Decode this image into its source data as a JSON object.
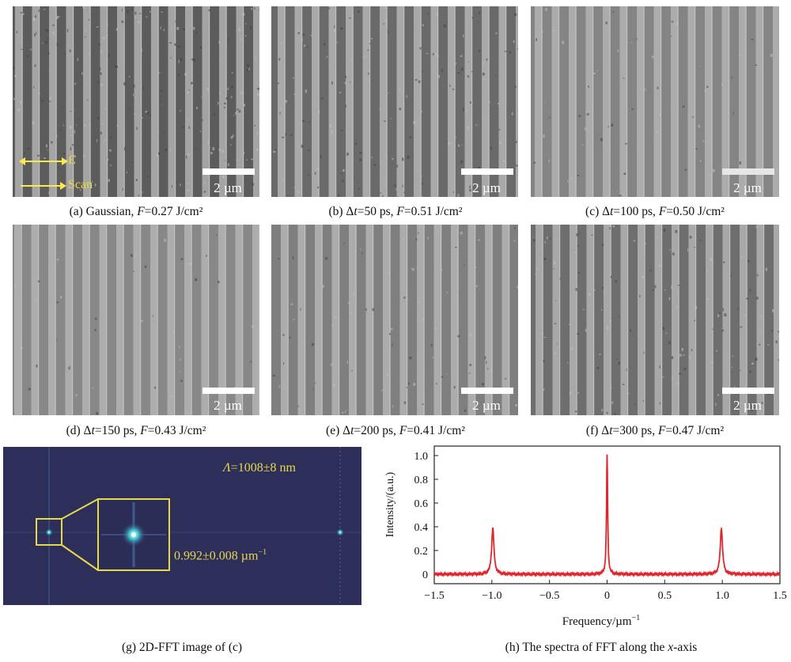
{
  "panels": {
    "a": {
      "caption_pre": "(a) Gaussian, ",
      "f_italic": "F",
      "caption_post": "=0.27 J/cm²",
      "scale_label": "2 µm",
      "legend": {
        "e_label": "E",
        "scan_label": "Scan"
      }
    },
    "b": {
      "caption_pre": "(b) Δ",
      "t_italic": "t",
      "caption_mid": "=50 ps, ",
      "f_italic": "F",
      "caption_post": "=0.51 J/cm²",
      "scale_label": "2 µm"
    },
    "c": {
      "caption_pre": "(c) Δ",
      "t_italic": "t",
      "caption_mid": "=100 ps, ",
      "f_italic": "F",
      "caption_post": "=0.50 J/cm²",
      "scale_label": "2 µm"
    },
    "d": {
      "caption_pre": "(d) Δ",
      "t_italic": "t",
      "caption_mid": "=150 ps, ",
      "f_italic": "F",
      "caption_post": "=0.43 J/cm²",
      "scale_label": "2 µm"
    },
    "e": {
      "caption_pre": "(e) Δ",
      "t_italic": "t",
      "caption_mid": "=200 ps, ",
      "f_italic": "F",
      "caption_post": "=0.41 J/cm²",
      "scale_label": "2 µm"
    },
    "f": {
      "caption_pre": "(f) Δ",
      "t_italic": "t",
      "caption_mid": "=300 ps, ",
      "f_italic": "F",
      "caption_post": "=0.47 J/cm²",
      "scale_label": "2 µm"
    }
  },
  "fft_image": {
    "caption": "(g) 2D-FFT image of (c)",
    "lambda_symbol": "Λ",
    "period_value": "=1008±8 nm",
    "frequency_label": "0.992±0.008 µm",
    "frequency_exponent": "−1"
  },
  "chart_data": {
    "type": "line",
    "title": "",
    "caption_pre": "(h) The spectra of FFT along the ",
    "caption_italic": "x",
    "caption_post": "-axis",
    "xlabel": "Frequency/µm",
    "xlabel_exponent": "−1",
    "ylabel": "Intensity/(a.u.)",
    "xlim": [
      -1.5,
      1.5
    ],
    "ylim": [
      -0.08,
      1.08
    ],
    "x_ticks": [
      -1.5,
      -1.0,
      -0.5,
      0,
      0.5,
      1.0,
      1.5
    ],
    "x_tick_labels": [
      "−1.5",
      "−1.0",
      "−0.5",
      "0",
      "0.5",
      "1.0",
      "1.5"
    ],
    "y_ticks": [
      0,
      0.2,
      0.4,
      0.6,
      0.8,
      1.0
    ],
    "y_tick_labels": [
      "0",
      "0.2",
      "0.4",
      "0.6",
      "0.8",
      "1.0"
    ],
    "series": [
      {
        "name": "FFT spectrum",
        "color": "#e0262b",
        "peaks": [
          {
            "x": -0.992,
            "y": 0.39
          },
          {
            "x": 0.0,
            "y": 1.0
          },
          {
            "x": 0.992,
            "y": 0.39
          }
        ],
        "baseline": 0.0
      }
    ]
  }
}
